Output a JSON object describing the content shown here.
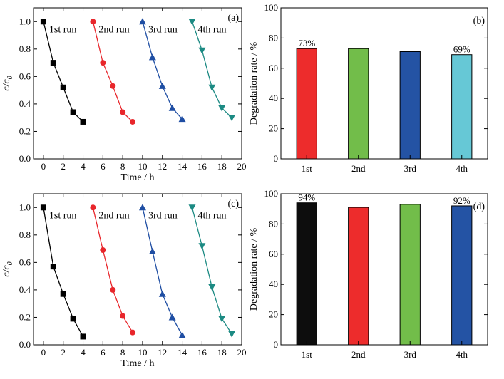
{
  "chart_data": [
    {
      "panel": "(a)",
      "type": "line",
      "xlabel": "Time / h",
      "ylabel": "c/c0",
      "ylabel_main": "c/c",
      "ylabel_sub": "0",
      "xlim": [
        -1,
        20
      ],
      "ylim": [
        0.0,
        1.1
      ],
      "xticks": [
        0,
        2,
        4,
        6,
        8,
        10,
        12,
        14,
        16,
        18,
        20
      ],
      "yticks": [
        0.0,
        0.2,
        0.4,
        0.6,
        0.8,
        1.0
      ],
      "ytick_labels": [
        "0.0",
        "0.2",
        "0.4",
        "0.6",
        "0.8",
        "1.0"
      ],
      "series": [
        {
          "name": "1st run",
          "color": "#000000",
          "marker": "square",
          "x": [
            0,
            1,
            2,
            3,
            4
          ],
          "y": [
            1.0,
            0.7,
            0.52,
            0.34,
            0.27
          ]
        },
        {
          "name": "2nd run",
          "color": "#e8262b",
          "marker": "circle",
          "x": [
            5,
            6,
            7,
            8,
            9
          ],
          "y": [
            1.0,
            0.7,
            0.53,
            0.34,
            0.27
          ]
        },
        {
          "name": "3rd run",
          "color": "#1f4ea3",
          "marker": "triangle-up",
          "x": [
            10,
            11,
            12,
            13,
            14
          ],
          "y": [
            1.0,
            0.74,
            0.53,
            0.37,
            0.29
          ]
        },
        {
          "name": "4th run",
          "color": "#1c8a83",
          "marker": "triangle-down",
          "x": [
            15,
            16,
            17,
            18,
            19
          ],
          "y": [
            1.0,
            0.79,
            0.52,
            0.37,
            0.3
          ]
        }
      ]
    },
    {
      "panel": "(b)",
      "type": "bar",
      "xlabel": "",
      "ylabel": "Degradation rate / %",
      "ylim": [
        0,
        100
      ],
      "yticks": [
        0,
        20,
        40,
        60,
        80,
        100
      ],
      "categories": [
        "1st",
        "2nd",
        "3rd",
        "4th"
      ],
      "values": [
        73,
        73,
        71,
        69
      ],
      "colors": [
        "#ed2c2c",
        "#72bd4a",
        "#2453a4",
        "#66c8d6"
      ],
      "annotations": [
        "73%",
        "",
        "",
        "69%"
      ]
    },
    {
      "panel": "(c)",
      "type": "line",
      "xlabel": "Time / h",
      "ylabel": "c/c0",
      "ylabel_main": "c/c",
      "ylabel_sub": "0",
      "xlim": [
        -1,
        20
      ],
      "ylim": [
        0.0,
        1.1
      ],
      "xticks": [
        0,
        2,
        4,
        6,
        8,
        10,
        12,
        14,
        16,
        18,
        20
      ],
      "yticks": [
        0.0,
        0.2,
        0.4,
        0.6,
        0.8,
        1.0
      ],
      "ytick_labels": [
        "0.0",
        "0.2",
        "0.4",
        "0.6",
        "0.8",
        "1.0"
      ],
      "series": [
        {
          "name": "1st run",
          "color": "#000000",
          "marker": "square",
          "x": [
            0,
            1,
            2,
            3,
            4
          ],
          "y": [
            1.0,
            0.57,
            0.37,
            0.19,
            0.06
          ]
        },
        {
          "name": "2nd run",
          "color": "#e8262b",
          "marker": "circle",
          "x": [
            5,
            6,
            7,
            8,
            9
          ],
          "y": [
            1.0,
            0.69,
            0.4,
            0.21,
            0.09
          ]
        },
        {
          "name": "3rd run",
          "color": "#1f4ea3",
          "marker": "triangle-up",
          "x": [
            10,
            11,
            12,
            13,
            14
          ],
          "y": [
            1.0,
            0.68,
            0.37,
            0.2,
            0.07
          ]
        },
        {
          "name": "4th run",
          "color": "#1c8a83",
          "marker": "triangle-down",
          "x": [
            15,
            16,
            17,
            18,
            19
          ],
          "y": [
            1.0,
            0.72,
            0.42,
            0.19,
            0.08
          ]
        }
      ]
    },
    {
      "panel": "(d)",
      "type": "bar",
      "xlabel": "",
      "ylabel": "Degradation rate / %",
      "ylim": [
        0,
        100
      ],
      "yticks": [
        0,
        20,
        40,
        60,
        80,
        100
      ],
      "categories": [
        "1st",
        "2nd",
        "3rd",
        "4th"
      ],
      "values": [
        94,
        91,
        93,
        92
      ],
      "colors": [
        "#0d0d0d",
        "#ed2c2c",
        "#72bd4a",
        "#2453a4"
      ],
      "annotations": [
        "94%",
        "",
        "",
        "92%"
      ]
    }
  ]
}
